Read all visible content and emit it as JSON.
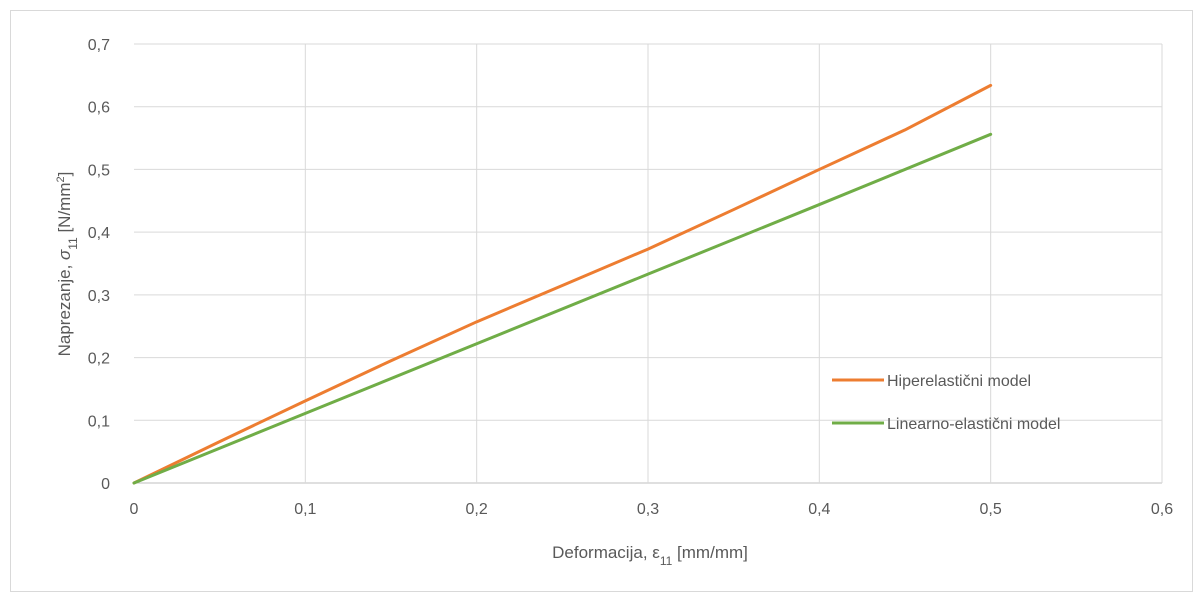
{
  "chart_data": {
    "type": "line",
    "title": "",
    "xlabel": {
      "main": "Deformacija, ε",
      "sub": "11",
      "unit": " [mm/mm]"
    },
    "ylabel": {
      "main": "Naprezanje, ",
      "symbol": "σ",
      "sub": "11",
      "unit_pre": " [N/mm",
      "unit_sup": "2",
      "unit_post": "]"
    },
    "xlim": [
      0,
      0.6
    ],
    "ylim": [
      0,
      0.7
    ],
    "xticks": [
      0,
      0.1,
      0.2,
      0.3,
      0.4,
      0.5,
      0.6
    ],
    "yticks": [
      0,
      0.1,
      0.2,
      0.3,
      0.4,
      0.5,
      0.6,
      0.7
    ],
    "xtick_labels": [
      "0",
      "0,1",
      "0,2",
      "0,3",
      "0,4",
      "0,5",
      "0,6"
    ],
    "ytick_labels": [
      "0",
      "0,1",
      "0,2",
      "0,3",
      "0,4",
      "0,5",
      "0,6",
      "0,7"
    ],
    "grid": true,
    "legend_position": "right",
    "series": [
      {
        "name": "Hiperelastični model",
        "color": "#ed7d31",
        "x": [
          0,
          0.05,
          0.1,
          0.15,
          0.2,
          0.25,
          0.3,
          0.35,
          0.4,
          0.45,
          0.5
        ],
        "y": [
          0,
          0.066,
          0.131,
          0.195,
          0.257,
          0.315,
          0.373,
          0.436,
          0.5,
          0.563,
          0.634
        ]
      },
      {
        "name": "Linearno-elastični model",
        "color": "#70ad47",
        "x": [
          0,
          0.1,
          0.2,
          0.3,
          0.4,
          0.5
        ],
        "y": [
          0,
          0.111,
          0.222,
          0.333,
          0.444,
          0.556
        ]
      }
    ]
  }
}
